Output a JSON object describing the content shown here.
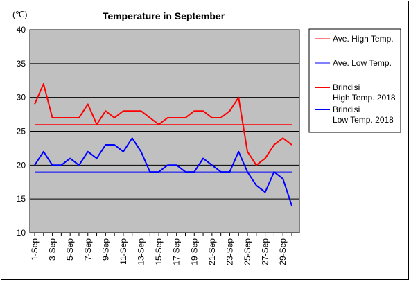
{
  "chart_data": {
    "type": "line",
    "title": "Temperature in September",
    "unit_label": "(℃)",
    "xlabel": "",
    "ylabel": "",
    "ylim": [
      10,
      40
    ],
    "yticks": [
      10,
      15,
      20,
      25,
      30,
      35,
      40
    ],
    "grid": true,
    "legend_position": "right",
    "background": "#c0c0c0",
    "x": [
      "1-Sep",
      "2-Sep",
      "3-Sep",
      "4-Sep",
      "5-Sep",
      "6-Sep",
      "7-Sep",
      "8-Sep",
      "9-Sep",
      "10-Sep",
      "11-Sep",
      "12-Sep",
      "13-Sep",
      "14-Sep",
      "15-Sep",
      "16-Sep",
      "17-Sep",
      "18-Sep",
      "19-Sep",
      "20-Sep",
      "21-Sep",
      "22-Sep",
      "23-Sep",
      "24-Sep",
      "25-Sep",
      "26-Sep",
      "27-Sep",
      "28-Sep",
      "29-Sep",
      "30-Sep"
    ],
    "xtick_labels": [
      "1-Sep",
      "3-Sep",
      "5-Sep",
      "7-Sep",
      "9-Sep",
      "11-Sep",
      "13-Sep",
      "15-Sep",
      "17-Sep",
      "19-Sep",
      "21-Sep",
      "23-Sep",
      "25-Sep",
      "27-Sep",
      "29-Sep"
    ],
    "series": [
      {
        "name": "Ave. High Temp.",
        "legend_lines": [
          "Ave. High Temp."
        ],
        "color": "#ff0000",
        "width": 1,
        "values": [
          26,
          26,
          26,
          26,
          26,
          26,
          26,
          26,
          26,
          26,
          26,
          26,
          26,
          26,
          26,
          26,
          26,
          26,
          26,
          26,
          26,
          26,
          26,
          26,
          26,
          26,
          26,
          26,
          26,
          26
        ]
      },
      {
        "name": "Ave. Low Temp.",
        "legend_lines": [
          "Ave. Low Temp."
        ],
        "color": "#0000ff",
        "width": 1,
        "values": [
          19,
          19,
          19,
          19,
          19,
          19,
          19,
          19,
          19,
          19,
          19,
          19,
          19,
          19,
          19,
          19,
          19,
          19,
          19,
          19,
          19,
          19,
          19,
          19,
          19,
          19,
          19,
          19,
          19,
          19
        ]
      },
      {
        "name": "Brindisi High Temp. 2018",
        "legend_lines": [
          "Brindisi",
          "High Temp. 2018"
        ],
        "color": "#ff0000",
        "width": 2,
        "values": [
          29,
          32,
          27,
          27,
          27,
          27,
          29,
          26,
          28,
          27,
          28,
          28,
          28,
          27,
          26,
          27,
          27,
          27,
          28,
          28,
          27,
          27,
          28,
          30,
          22,
          20,
          21,
          23,
          24,
          23
        ]
      },
      {
        "name": "Brindisi Low Temp. 2018",
        "legend_lines": [
          "Brindisi",
          "Low Temp. 2018"
        ],
        "color": "#0000ff",
        "width": 2,
        "values": [
          20,
          22,
          20,
          20,
          21,
          20,
          22,
          21,
          23,
          23,
          22,
          24,
          22,
          19,
          19,
          20,
          20,
          19,
          19,
          21,
          20,
          19,
          19,
          22,
          19,
          17,
          16,
          19,
          18,
          14
        ]
      }
    ]
  }
}
